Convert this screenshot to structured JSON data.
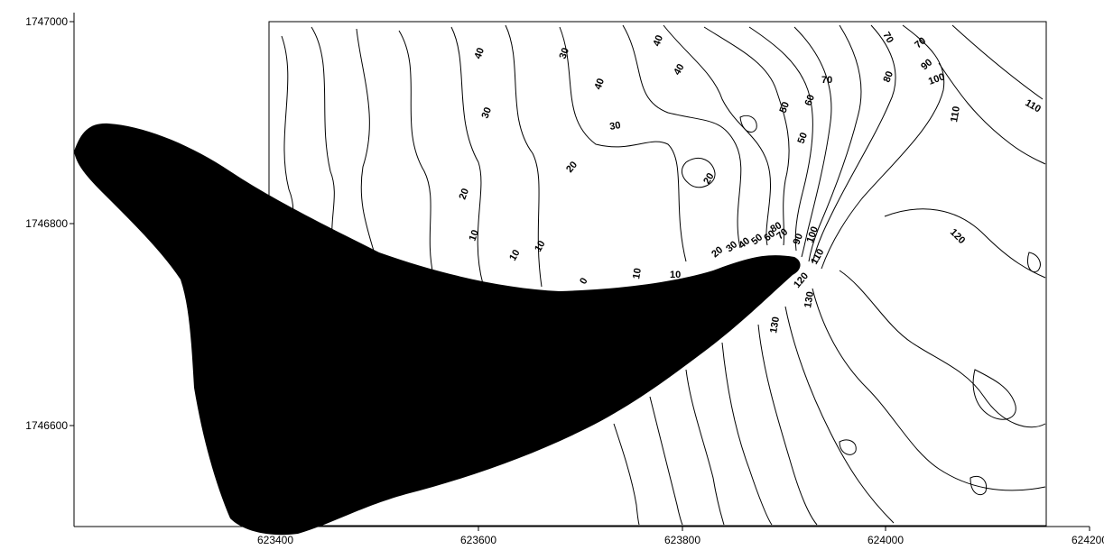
{
  "map": {
    "x_ticks": [
      "623400",
      "623600",
      "623800",
      "624000",
      "624200"
    ],
    "y_ticks": [
      "1747000",
      "1746800",
      "1746600"
    ],
    "contour_labels": [
      "40",
      "30",
      "40",
      "40",
      "70",
      "70",
      "80",
      "90",
      "100",
      "110",
      "110",
      "30",
      "40",
      "70",
      "50",
      "60",
      "50",
      "30",
      "20",
      "20",
      "20",
      "10",
      "10",
      "10",
      "0",
      "10",
      "10",
      "20",
      "30",
      "40",
      "50",
      "60",
      "70",
      "80",
      "90",
      "100",
      "110",
      "120",
      "130",
      "130",
      "120"
    ],
    "colors": {
      "ink": "#000000",
      "background": "#ffffff"
    }
  }
}
